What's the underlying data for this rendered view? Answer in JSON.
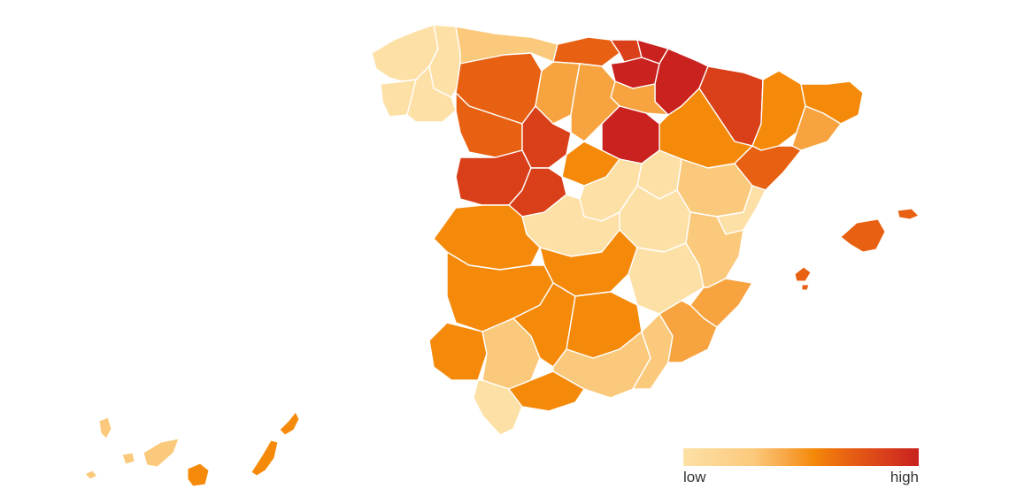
{
  "legend": {
    "low_label": "low",
    "high_label": "high",
    "colors": [
      "#fde0a6",
      "#fbc97b",
      "#f7a33f",
      "#f58a0a",
      "#e86112",
      "#d9401a",
      "#c9221f"
    ]
  },
  "colors": {
    "c1": "#fde0a6",
    "c2": "#fbc97b",
    "c3": "#f7a33f",
    "c4": "#f58a0a",
    "c5": "#e86112",
    "c6": "#d9401a",
    "c7": "#c9221f"
  }
}
